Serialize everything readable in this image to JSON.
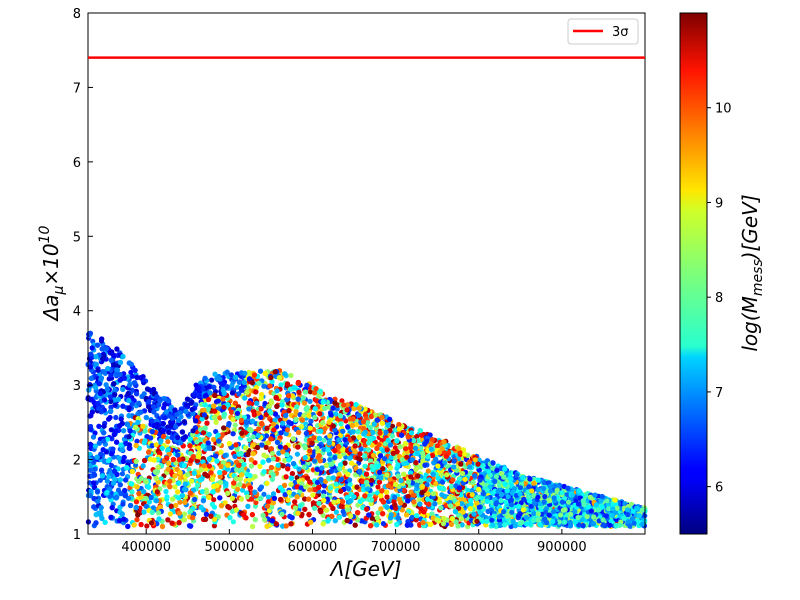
{
  "chart_data": {
    "type": "scatter",
    "title": "",
    "xlabel": "Λ[GeV]",
    "ylabel": "Δa_μ×10^10",
    "xlim": [
      330000,
      1000000
    ],
    "ylim": [
      1,
      8
    ],
    "x_ticks": [
      400000,
      500000,
      600000,
      700000,
      800000,
      900000
    ],
    "x_tick_labels": [
      "400000",
      "500000",
      "600000",
      "700000",
      "800000",
      "900000"
    ],
    "y_ticks": [
      1,
      2,
      3,
      4,
      5,
      6,
      7,
      8
    ],
    "y_tick_labels": [
      "1",
      "2",
      "3",
      "4",
      "5",
      "6",
      "7",
      "8"
    ],
    "grid": false,
    "reference_line": {
      "y": 7.4,
      "color": "#ff0000",
      "label": "3σ"
    },
    "legend": {
      "position": "top-right",
      "entries": [
        "3σ"
      ]
    },
    "colorbar": {
      "label": "log(M_mess)[GeV]",
      "range": [
        5.5,
        11.0
      ],
      "ticks": [
        6,
        7,
        8,
        9,
        10
      ],
      "tick_labels": [
        "6",
        "7",
        "8",
        "9",
        "10"
      ],
      "colormap": "jet"
    },
    "envelope": {
      "x": [
        330000,
        370000,
        440000,
        455000,
        475000,
        560000,
        650000,
        750000,
        850000,
        1000000
      ],
      "y_upper": [
        3.75,
        3.45,
        2.65,
        2.9,
        3.18,
        3.2,
        2.75,
        2.3,
        1.8,
        1.35
      ],
      "y_lower": 1.1
    },
    "points": [
      [
        335000,
        3.5,
        6.2
      ],
      [
        342000,
        3.2,
        5.9
      ],
      [
        350000,
        2.8,
        6.1
      ],
      [
        358000,
        2.4,
        6.0
      ],
      [
        365000,
        1.8,
        6.3
      ],
      [
        372000,
        1.4,
        6.5
      ],
      [
        380000,
        3.0,
        6.8
      ],
      [
        390000,
        2.5,
        7.2
      ],
      [
        400000,
        1.7,
        8.4
      ],
      [
        412000,
        2.2,
        9.1
      ],
      [
        425000,
        1.5,
        7.6
      ],
      [
        440000,
        2.0,
        10.2
      ],
      [
        460000,
        3.0,
        6.1
      ],
      [
        470000,
        2.6,
        6.4
      ],
      [
        490000,
        2.1,
        8.8
      ],
      [
        510000,
        1.6,
        9.5
      ],
      [
        530000,
        2.6,
        10.4
      ],
      [
        550000,
        3.1,
        10.9
      ],
      [
        570000,
        2.4,
        9.8
      ],
      [
        590000,
        1.9,
        8.1
      ],
      [
        620000,
        2.5,
        9.2
      ],
      [
        650000,
        1.5,
        7.4
      ],
      [
        680000,
        2.2,
        9.9
      ],
      [
        710000,
        1.8,
        8.6
      ],
      [
        740000,
        1.4,
        10.1
      ],
      [
        770000,
        1.9,
        7.1
      ],
      [
        800000,
        1.6,
        8.9
      ],
      [
        830000,
        1.3,
        6.7
      ],
      [
        860000,
        1.5,
        7.9
      ],
      [
        890000,
        1.3,
        6.9
      ],
      [
        920000,
        1.4,
        6.4
      ],
      [
        960000,
        1.25,
        7.3
      ]
    ]
  }
}
